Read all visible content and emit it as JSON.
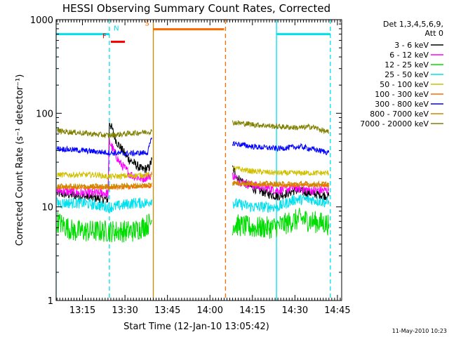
{
  "chart_data": {
    "type": "line",
    "title": "HESSI Observing Summary Count Rates, Corrected",
    "xlabel": "Start Time (12-Jan-10 13:05:42)",
    "ylabel": "Corrected Count Rate (s⁻¹ detector⁻¹)",
    "y_scale": "log",
    "ylim": [
      1,
      1000
    ],
    "xlim": [
      "13:05:42",
      "14:46:30"
    ],
    "x_ticks": [
      "13:15",
      "13:30",
      "13:45",
      "14:00",
      "14:15",
      "14:30",
      "14:45"
    ],
    "y_ticks": [
      "1",
      "10",
      "100",
      "1000"
    ],
    "footer": "11-May-2010 10:23",
    "legend": {
      "title_line1": "Det 1,3,4,5,6,9,",
      "title_line2": "Att 0",
      "placement": "outside-right",
      "entries": [
        {
          "label": "3 - 6 keV",
          "color": "#000000"
        },
        {
          "label": "6 - 12 keV",
          "color": "#ff00ff"
        },
        {
          "label": "12 - 25 keV",
          "color": "#00dd00"
        },
        {
          "label": "25 - 50 keV",
          "color": "#00e0ee"
        },
        {
          "label": "50 - 100 keV",
          "color": "#d0c000"
        },
        {
          "label": "100 - 300 keV",
          "color": "#ff6a00"
        },
        {
          "label": "300 - 800 keV",
          "color": "#0000ff"
        },
        {
          "label": "800 - 7000 keV",
          "color": "#cc8800"
        },
        {
          "label": "7000 - 20000 keV",
          "color": "#808000"
        }
      ]
    },
    "flags": [
      {
        "label": "N",
        "color": "#00e0ee",
        "y": 700,
        "segments": [
          [
            "13:05:42",
            "13:24:30"
          ],
          [
            "14:23:30",
            "14:42:30"
          ]
        ]
      },
      {
        "label": "F",
        "color": "#ff0000",
        "y": 580,
        "segments": [
          [
            "13:25:00",
            "13:30:00"
          ]
        ]
      },
      {
        "label": "S",
        "color": "#ff6a00",
        "y": 790,
        "segments": [
          [
            "13:40:00",
            "14:05:00"
          ]
        ]
      }
    ],
    "markers": [
      {
        "time": "13:05:42",
        "color": "#00e0ee",
        "style": "solid"
      },
      {
        "time": "13:24:30",
        "color": "#00e0ee",
        "style": "dashed"
      },
      {
        "time": "13:40:00",
        "color": "#cc8800",
        "style": "solid"
      },
      {
        "time": "14:05:30",
        "color": "#ff6a00",
        "style": "dashed"
      },
      {
        "time": "14:23:30",
        "color": "#00e0ee",
        "style": "solid"
      },
      {
        "time": "14:42:30",
        "color": "#00e0ee",
        "style": "dashed"
      }
    ],
    "series": [
      {
        "name": "3 - 6 keV",
        "color": "#000000",
        "noise": 0.05,
        "segments": [
          {
            "x": [
              "13:06",
              "13:15",
              "13:24",
              "13:24:30",
              "13:27",
              "13:31",
              "13:36",
              "13:38:30",
              "13:39:30"
            ],
            "y": [
              14,
              13,
              12,
              82,
              50,
              33,
              25,
              26,
              32
            ]
          },
          {
            "x": [
              "14:08",
              "14:10",
              "14:15",
              "14:20",
              "14:24",
              "14:30",
              "14:36",
              "14:42"
            ],
            "y": [
              26,
              20,
              16,
              14,
              13,
              15,
              14,
              13
            ]
          }
        ]
      },
      {
        "name": "6 - 12 keV",
        "color": "#ff00ff",
        "noise": 0.05,
        "segments": [
          {
            "x": [
              "13:06",
              "13:15",
              "13:24",
              "13:24:30",
              "13:28",
              "13:32",
              "13:36",
              "13:39:30"
            ],
            "y": [
              15,
              14,
              14,
              50,
              30,
              22,
              20,
              22
            ]
          },
          {
            "x": [
              "14:08",
              "14:10",
              "14:15",
              "14:20",
              "14:24",
              "14:30",
              "14:36",
              "14:42"
            ],
            "y": [
              22,
              19,
              17,
              16,
              15,
              16,
              15,
              15
            ]
          }
        ]
      },
      {
        "name": "12 - 25 keV",
        "color": "#00dd00",
        "noise": 0.12,
        "segments": [
          {
            "x": [
              "13:06",
              "13:12",
              "13:24",
              "13:26",
              "13:33",
              "13:38",
              "13:39:30"
            ],
            "y": [
              7,
              5.5,
              5.5,
              5.5,
              5.5,
              6.5,
              7
            ]
          },
          {
            "x": [
              "14:08",
              "14:15",
              "14:22",
              "14:26",
              "14:32",
              "14:36",
              "14:42"
            ],
            "y": [
              6.5,
              6,
              6,
              6.5,
              7.5,
              7,
              6.5
            ]
          }
        ]
      },
      {
        "name": "25 - 50 keV",
        "color": "#00e0ee",
        "noise": 0.06,
        "segments": [
          {
            "x": [
              "13:06",
              "13:15",
              "13:24",
              "13:26",
              "13:33",
              "13:38",
              "13:39:30"
            ],
            "y": [
              11,
              11,
              10,
              10,
              11,
              11,
              12
            ]
          },
          {
            "x": [
              "14:08",
              "14:15",
              "14:24",
              "14:30",
              "14:36",
              "14:42"
            ],
            "y": [
              11,
              10,
              10,
              12,
              12,
              11
            ]
          }
        ]
      },
      {
        "name": "50 - 100 keV",
        "color": "#d0c000",
        "noise": 0.03,
        "segments": [
          {
            "x": [
              "13:06",
              "13:20",
              "13:24",
              "13:39:30"
            ],
            "y": [
              22,
              22,
              21,
              22
            ]
          },
          {
            "x": [
              "14:08",
              "14:15",
              "14:24",
              "14:42"
            ],
            "y": [
              26,
              24,
              23,
              23
            ]
          }
        ]
      },
      {
        "name": "100 - 300 keV",
        "color": "#ff6a00",
        "noise": 0.02,
        "segments": [
          {
            "x": [
              "13:06",
              "13:24",
              "13:39:30"
            ],
            "y": [
              16,
              16,
              16.5
            ]
          },
          {
            "x": [
              "14:08",
              "14:24",
              "14:42"
            ],
            "y": [
              18,
              17,
              17
            ]
          }
        ]
      },
      {
        "name": "300 - 800 keV",
        "color": "#0000ff",
        "noise": 0.03,
        "segments": [
          {
            "x": [
              "13:06",
              "13:24",
              "13:30",
              "13:38",
              "13:39:30"
            ],
            "y": [
              42,
              38,
              37,
              38,
              55
            ]
          },
          {
            "x": [
              "14:08",
              "14:15",
              "14:24",
              "14:32",
              "14:42"
            ],
            "y": [
              48,
              44,
              42,
              44,
              38
            ]
          }
        ]
      },
      {
        "name": "800 - 7000 keV",
        "color": "#cc8800",
        "noise": 0.03,
        "segments": [
          {
            "x": [
              "13:06",
              "13:24",
              "13:38",
              "13:39:30"
            ],
            "y": [
              16.5,
              16.5,
              17,
              18
            ]
          },
          {
            "x": [
              "14:08",
              "14:24",
              "14:42"
            ],
            "y": [
              18,
              17.5,
              17.5
            ]
          }
        ]
      },
      {
        "name": "7000 - 20000 keV",
        "color": "#808000",
        "noise": 0.03,
        "segments": [
          {
            "x": [
              "13:06",
              "13:24",
              "13:39:30"
            ],
            "y": [
              65,
              58,
              64
            ]
          },
          {
            "x": [
              "14:08",
              "14:15",
              "14:24",
              "14:32",
              "14:36",
              "14:42"
            ],
            "y": [
              80,
              76,
              72,
              70,
              72,
              62
            ]
          }
        ]
      }
    ]
  }
}
